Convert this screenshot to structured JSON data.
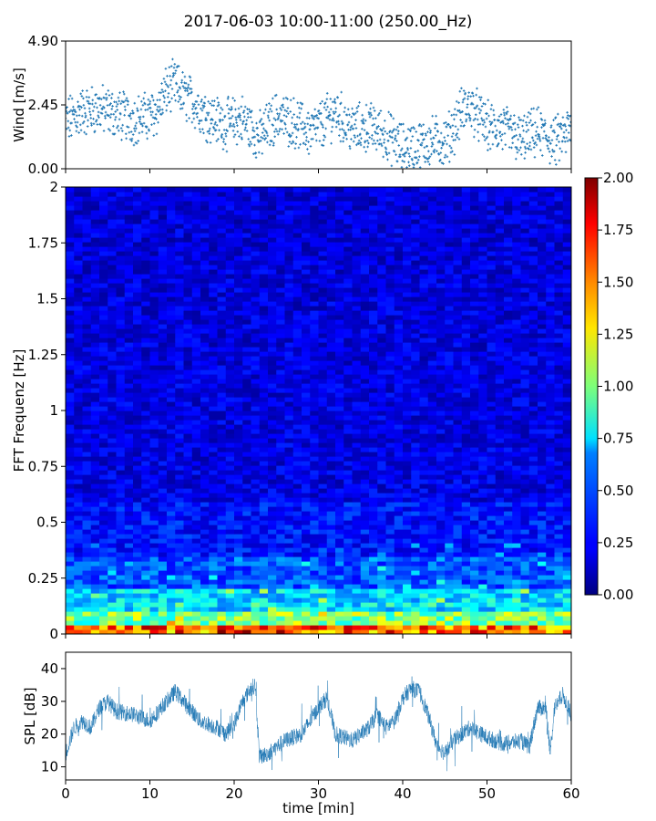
{
  "figure": {
    "title": "2017-06-03 10:00-11:00 (250.00_Hz)"
  },
  "chart_data": [
    {
      "type": "scatter",
      "name": "wind-panel",
      "xlabel": "",
      "ylabel": "Wind [m/s]",
      "xlim": [
        0,
        60
      ],
      "ylim": [
        0.0,
        4.9
      ],
      "yticks": [
        0.0,
        2.45,
        4.9
      ],
      "ytick_labels": [
        "0.00",
        "2.45",
        "4.90"
      ],
      "color": "#1f77b4",
      "x_unit": "min",
      "mean_profile": {
        "x": [
          0,
          2,
          4,
          6,
          8,
          10,
          11,
          12,
          13,
          14,
          15,
          17,
          19,
          21,
          23,
          25,
          27,
          29,
          30,
          32,
          34,
          36,
          38,
          40,
          42,
          44,
          45,
          46,
          47,
          48,
          50,
          52,
          54,
          56,
          58,
          60
        ],
        "y": [
          1.8,
          2.2,
          2.3,
          2.1,
          1.9,
          2.0,
          2.3,
          3.0,
          3.2,
          2.8,
          2.6,
          2.0,
          1.7,
          1.9,
          1.2,
          2.0,
          1.8,
          1.4,
          1.6,
          2.2,
          1.5,
          1.6,
          1.3,
          0.8,
          0.9,
          1.1,
          1.0,
          1.5,
          2.2,
          2.4,
          1.6,
          1.5,
          1.1,
          1.4,
          1.0,
          1.5
        ]
      }
    },
    {
      "type": "heatmap",
      "name": "spectrogram-panel",
      "xlabel": "",
      "ylabel": "FFT Frequenz [Hz]",
      "xlim": [
        0,
        60
      ],
      "ylim": [
        0,
        2
      ],
      "yticks": [
        0,
        0.25,
        0.5,
        0.75,
        1,
        1.25,
        1.5,
        1.75,
        2
      ],
      "ytick_labels": [
        "0",
        "0.25",
        "0.5",
        "0.75",
        "1",
        "1.25",
        "1.5",
        "1.75",
        "2"
      ],
      "colormap": "jet",
      "colorbar": {
        "min": 0.0,
        "max": 2.0,
        "ticks": [
          0.0,
          0.25,
          0.5,
          0.75,
          1.0,
          1.25,
          1.5,
          1.75,
          2.0
        ],
        "tick_labels": [
          "0.00",
          "0.25",
          "0.50",
          "0.75",
          "1.00",
          "1.25",
          "1.50",
          "1.75",
          "2.00"
        ]
      }
    },
    {
      "type": "line",
      "name": "spl-panel",
      "xlabel": "time [min]",
      "ylabel": "SPL [dB]",
      "xlim": [
        0,
        60
      ],
      "ylim": [
        6,
        45
      ],
      "xticks": [
        0,
        10,
        20,
        30,
        40,
        50,
        60
      ],
      "xtick_labels": [
        "0",
        "10",
        "20",
        "30",
        "40",
        "50",
        "60"
      ],
      "yticks": [
        10,
        20,
        30,
        40
      ],
      "ytick_labels": [
        "10",
        "20",
        "30",
        "40"
      ],
      "color": "#1f77b4",
      "mean_profile": {
        "x": [
          0,
          1,
          2,
          3,
          4,
          5,
          6,
          8,
          10,
          11,
          12,
          13,
          14,
          16,
          18,
          19,
          20,
          21,
          22,
          22.5,
          23,
          24,
          26,
          28,
          29,
          30,
          31,
          32,
          34,
          36,
          37,
          38,
          39,
          40,
          41,
          42,
          43,
          44,
          45,
          46,
          48,
          50,
          52,
          54,
          55,
          56,
          57,
          57.5,
          58,
          59,
          60
        ],
        "y": [
          14,
          22,
          24,
          22,
          28,
          30,
          27,
          26,
          24,
          27,
          30,
          33,
          30,
          24,
          22,
          20,
          23,
          30,
          34,
          35,
          13,
          14,
          18,
          20,
          24,
          28,
          31,
          20,
          18,
          22,
          26,
          22,
          24,
          31,
          34,
          33,
          26,
          17,
          14,
          18,
          22,
          19,
          17,
          18,
          16,
          28,
          28,
          14,
          28,
          32,
          26
        ]
      }
    }
  ]
}
